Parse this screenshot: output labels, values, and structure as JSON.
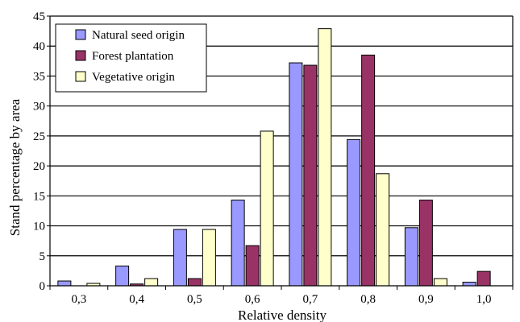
{
  "chart_data": {
    "type": "bar",
    "xlabel": "Relative density",
    "ylabel": "Stand percentage by area",
    "categories": [
      "0,3",
      "0,4",
      "0,5",
      "0,6",
      "0,7",
      "0,8",
      "0,9",
      "1,0"
    ],
    "series": [
      {
        "name": "Natural seed origin",
        "color": "#9999ff",
        "values": [
          0.8,
          3.3,
          9.4,
          14.3,
          37.2,
          24.4,
          9.7,
          0.6
        ]
      },
      {
        "name": "Forest plantation",
        "color": "#993366",
        "values": [
          0.0,
          0.3,
          1.2,
          6.7,
          36.8,
          38.5,
          14.3,
          2.4
        ]
      },
      {
        "name": "Vegetative origin",
        "color": "#ffffcc",
        "values": [
          0.4,
          1.2,
          9.4,
          25.8,
          42.9,
          18.7,
          1.2,
          0.0
        ]
      }
    ],
    "ylim": [
      0,
      45
    ],
    "yticks": [
      0,
      5,
      10,
      15,
      20,
      25,
      30,
      35,
      40,
      45
    ],
    "grid": true,
    "legend_position": "top-left"
  }
}
